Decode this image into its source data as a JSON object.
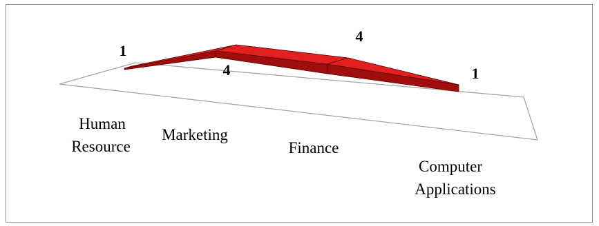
{
  "chart_data": {
    "type": "line",
    "style": "3d-ribbon",
    "categories": [
      "Human Resource",
      "Marketing",
      "Finance",
      "Computer Applications"
    ],
    "series": [
      {
        "values": [
          1,
          4,
          4,
          1
        ]
      }
    ],
    "data_labels": [
      "1",
      "4",
      "4",
      "1"
    ],
    "title": "",
    "xlabel": "",
    "ylabel": "",
    "grid": false,
    "legend": "none",
    "colors": {
      "ribbon_top": "#e32020",
      "ribbon_side": "#a00d0d",
      "ribbon_edge": "#5a0000",
      "floor_edge": "#a6a6a6",
      "frame": "#8c8c8c"
    }
  }
}
